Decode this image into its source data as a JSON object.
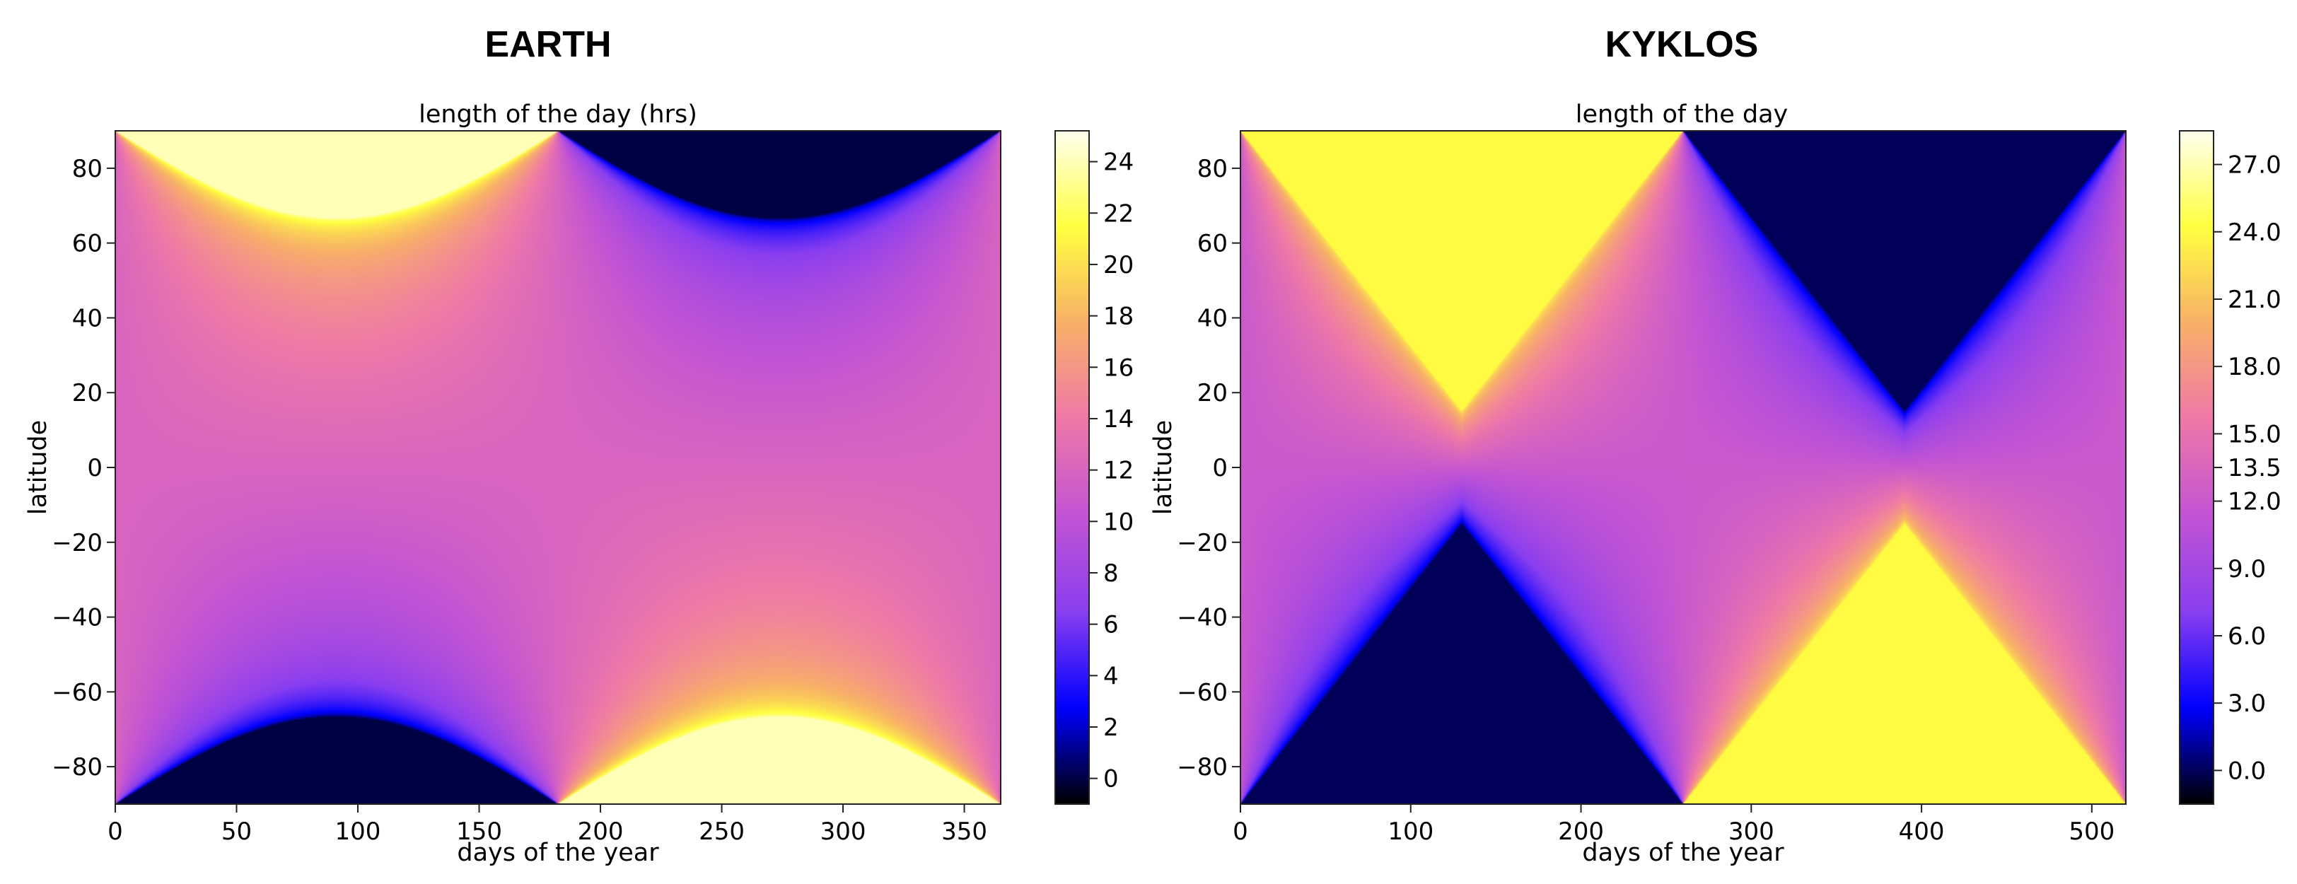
{
  "chart_data": [
    {
      "type": "heatmap",
      "suptitle": "EARTH",
      "title": "length of the day (hrs)",
      "xlabel": "days of the year",
      "ylabel": "latitude",
      "xlim": [
        0,
        365
      ],
      "ylim": [
        -90,
        90
      ],
      "x_ticks": [
        0,
        50,
        100,
        150,
        200,
        250,
        300,
        350
      ],
      "x_tick_labels": [
        "0",
        "50",
        "100",
        "150",
        "200",
        "250",
        "300",
        "350"
      ],
      "y_ticks": [
        80,
        60,
        40,
        20,
        0,
        -20,
        -40,
        -60,
        -80
      ],
      "y_tick_labels": [
        "80",
        "60",
        "40",
        "20",
        "0",
        "−20",
        "−40",
        "−60",
        "−80"
      ],
      "colorbar": {
        "range": [
          -1,
          25.2
        ],
        "ticks": [
          0,
          2,
          4,
          6,
          8,
          10,
          12,
          14,
          16,
          18,
          20,
          22,
          24
        ],
        "tick_labels": [
          "0",
          "2",
          "4",
          "6",
          "8",
          "10",
          "12",
          "14",
          "16",
          "18",
          "20",
          "22",
          "24"
        ]
      },
      "model": {
        "year_days": 365,
        "max_declination_deg": 23.44,
        "shape": "sinusoidal"
      },
      "grid": false
    },
    {
      "type": "heatmap",
      "suptitle": "KYKLOS",
      "title": "length of the day",
      "xlabel": "days of the year",
      "ylabel": "latitude",
      "xlim": [
        0,
        520
      ],
      "ylim": [
        -90,
        90
      ],
      "x_ticks": [
        0,
        100,
        200,
        300,
        400,
        500
      ],
      "x_tick_labels": [
        "0",
        "100",
        "200",
        "300",
        "400",
        "500"
      ],
      "y_ticks": [
        80,
        60,
        40,
        20,
        0,
        -20,
        -40,
        -60,
        -80
      ],
      "y_tick_labels": [
        "80",
        "60",
        "40",
        "20",
        "0",
        "−20",
        "−40",
        "−60",
        "−80"
      ],
      "colorbar": {
        "range": [
          -1.5,
          28.5
        ],
        "ticks": [
          0,
          3,
          6,
          9,
          12,
          13.5,
          15,
          18,
          21,
          24,
          27
        ],
        "tick_labels": [
          "0.0",
          "3.0",
          "6.0",
          "9.0",
          "12.0",
          "13.5",
          "15.0",
          "18.0",
          "21.0",
          "24.0",
          "27.0"
        ]
      },
      "model": {
        "year_days": 520,
        "max_declination_deg": 75,
        "shape": "triangular"
      },
      "grid": false
    }
  ],
  "colormap": [
    "#000000",
    "#0000ff",
    "#8a3ef0",
    "#c254d4",
    "#ef78a8",
    "#f8b068",
    "#ffff40",
    "#fffff0"
  ]
}
